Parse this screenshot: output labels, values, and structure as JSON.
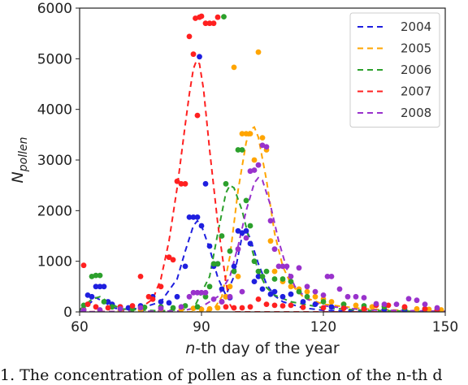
{
  "caption": "1. The concentration of pollen as a function of the n-th d",
  "chart_data": {
    "type": "scatter",
    "title": "",
    "xlabel_italic": "n",
    "xlabel_rest": "-th day of the year",
    "ylabel_main": "N",
    "ylabel_sub": "pollen",
    "xlim": [
      60,
      150
    ],
    "ylim": [
      0,
      6000
    ],
    "xticks": [
      60,
      90,
      120,
      150
    ],
    "yticks": [
      0,
      1000,
      2000,
      3000,
      4000,
      5000,
      6000
    ],
    "grid": false,
    "legend_position": "top-right",
    "series": [
      {
        "name": "2004",
        "color": "#1f1fdf",
        "points": [
          [
            61,
            50
          ],
          [
            62,
            330
          ],
          [
            63,
            300
          ],
          [
            64,
            500
          ],
          [
            65,
            500
          ],
          [
            66,
            500
          ],
          [
            67,
            200
          ],
          [
            68,
            150
          ],
          [
            70,
            100
          ],
          [
            72,
            80
          ],
          [
            75,
            120
          ],
          [
            78,
            300
          ],
          [
            80,
            200
          ],
          [
            82,
            180
          ],
          [
            84,
            300
          ],
          [
            86,
            900
          ],
          [
            87,
            1870
          ],
          [
            88,
            1870
          ],
          [
            89,
            1870
          ],
          [
            89.5,
            5040
          ],
          [
            90,
            1700
          ],
          [
            91,
            2530
          ],
          [
            92,
            1300
          ],
          [
            93,
            900
          ],
          [
            94,
            950
          ],
          [
            95,
            450
          ],
          [
            96,
            300
          ],
          [
            97,
            280
          ],
          [
            98,
            900
          ],
          [
            99,
            1600
          ],
          [
            100,
            1560
          ],
          [
            101,
            1600
          ],
          [
            102,
            1350
          ],
          [
            103,
            600
          ],
          [
            104,
            700
          ],
          [
            105,
            450
          ],
          [
            107,
            350
          ],
          [
            108,
            400
          ],
          [
            110,
            300
          ],
          [
            112,
            350
          ],
          [
            115,
            200
          ],
          [
            118,
            150
          ],
          [
            122,
            100
          ],
          [
            125,
            80
          ],
          [
            130,
            70
          ],
          [
            135,
            50
          ],
          [
            140,
            40
          ],
          [
            145,
            30
          ],
          [
            148,
            20
          ]
        ],
        "fit": [
          [
            60,
            30
          ],
          [
            62,
            130
          ],
          [
            64,
            280
          ],
          [
            66,
            200
          ],
          [
            68,
            90
          ],
          [
            70,
            50
          ],
          [
            75,
            70
          ],
          [
            80,
            200
          ],
          [
            84,
            650
          ],
          [
            86,
            1200
          ],
          [
            88,
            1700
          ],
          [
            89,
            1800
          ],
          [
            90,
            1700
          ],
          [
            92,
            1250
          ],
          [
            94,
            680
          ],
          [
            96,
            330
          ],
          [
            98,
            700
          ],
          [
            100,
            1500
          ],
          [
            101,
            1620
          ],
          [
            102,
            1450
          ],
          [
            104,
            950
          ],
          [
            106,
            550
          ],
          [
            108,
            320
          ],
          [
            110,
            200
          ],
          [
            115,
            80
          ],
          [
            120,
            30
          ],
          [
            130,
            10
          ],
          [
            150,
            0
          ]
        ]
      },
      {
        "name": "2005",
        "color": "#ffa500",
        "points": [
          [
            61,
            40
          ],
          [
            65,
            30
          ],
          [
            70,
            20
          ],
          [
            75,
            40
          ],
          [
            80,
            60
          ],
          [
            85,
            50
          ],
          [
            88,
            70
          ],
          [
            90,
            50
          ],
          [
            92,
            60
          ],
          [
            94,
            80
          ],
          [
            95,
            200
          ],
          [
            96,
            300
          ],
          [
            97,
            500
          ],
          [
            98,
            4830
          ],
          [
            99,
            700
          ],
          [
            100,
            3520
          ],
          [
            101,
            3520
          ],
          [
            102,
            3520
          ],
          [
            103,
            3000
          ],
          [
            104,
            5130
          ],
          [
            105,
            3440
          ],
          [
            106,
            3200
          ],
          [
            107,
            1400
          ],
          [
            108,
            800
          ],
          [
            110,
            600
          ],
          [
            112,
            500
          ],
          [
            114,
            450
          ],
          [
            116,
            400
          ],
          [
            118,
            300
          ],
          [
            120,
            250
          ],
          [
            122,
            200
          ],
          [
            125,
            150
          ],
          [
            128,
            130
          ],
          [
            132,
            100
          ],
          [
            135,
            120
          ],
          [
            140,
            90
          ],
          [
            143,
            60
          ],
          [
            146,
            50
          ],
          [
            149,
            40
          ]
        ],
        "fit": [
          [
            60,
            0
          ],
          [
            90,
            0
          ],
          [
            93,
            50
          ],
          [
            95,
            300
          ],
          [
            97,
            1100
          ],
          [
            99,
            2400
          ],
          [
            101,
            3350
          ],
          [
            102,
            3600
          ],
          [
            103,
            3650
          ],
          [
            104,
            3450
          ],
          [
            106,
            2600
          ],
          [
            108,
            1550
          ],
          [
            110,
            900
          ],
          [
            112,
            550
          ],
          [
            115,
            300
          ],
          [
            120,
            150
          ],
          [
            130,
            60
          ],
          [
            140,
            30
          ],
          [
            150,
            10
          ]
        ]
      },
      {
        "name": "2006",
        "color": "#2ca02c",
        "points": [
          [
            61,
            130
          ],
          [
            62,
            150
          ],
          [
            63,
            700
          ],
          [
            64,
            720
          ],
          [
            65,
            720
          ],
          [
            66,
            200
          ],
          [
            68,
            100
          ],
          [
            70,
            80
          ],
          [
            73,
            60
          ],
          [
            76,
            90
          ],
          [
            80,
            100
          ],
          [
            83,
            80
          ],
          [
            86,
            120
          ],
          [
            89,
            100
          ],
          [
            91,
            300
          ],
          [
            92,
            500
          ],
          [
            93,
            950
          ],
          [
            94,
            950
          ],
          [
            95,
            1500
          ],
          [
            95.5,
            5830
          ],
          [
            96,
            2530
          ],
          [
            97,
            1200
          ],
          [
            98,
            800
          ],
          [
            99,
            3200
          ],
          [
            100,
            3200
          ],
          [
            101,
            2200
          ],
          [
            102,
            1700
          ],
          [
            103,
            1000
          ],
          [
            104,
            800
          ],
          [
            105,
            700
          ],
          [
            106,
            800
          ],
          [
            108,
            650
          ],
          [
            110,
            650
          ],
          [
            112,
            600
          ],
          [
            114,
            400
          ],
          [
            116,
            300
          ],
          [
            120,
            200
          ],
          [
            125,
            150
          ],
          [
            130,
            120
          ],
          [
            135,
            100
          ],
          [
            140,
            80
          ],
          [
            145,
            60
          ],
          [
            148,
            40
          ]
        ],
        "fit": [
          [
            60,
            40
          ],
          [
            63,
            250
          ],
          [
            65,
            300
          ],
          [
            67,
            200
          ],
          [
            70,
            60
          ],
          [
            80,
            20
          ],
          [
            88,
            60
          ],
          [
            92,
            700
          ],
          [
            94,
            1550
          ],
          [
            96,
            2350
          ],
          [
            97,
            2500
          ],
          [
            98,
            2450
          ],
          [
            100,
            2000
          ],
          [
            102,
            1350
          ],
          [
            104,
            800
          ],
          [
            106,
            480
          ],
          [
            108,
            330
          ],
          [
            112,
            200
          ],
          [
            120,
            80
          ],
          [
            130,
            30
          ],
          [
            150,
            0
          ]
        ]
      },
      {
        "name": "2007",
        "color": "#ff2020",
        "points": [
          [
            61,
            920
          ],
          [
            62,
            150
          ],
          [
            64,
            100
          ],
          [
            67,
            80
          ],
          [
            70,
            100
          ],
          [
            73,
            120
          ],
          [
            75,
            700
          ],
          [
            77,
            300
          ],
          [
            78,
            250
          ],
          [
            80,
            500
          ],
          [
            82,
            1080
          ],
          [
            83,
            1030
          ],
          [
            84,
            2580
          ],
          [
            85,
            2530
          ],
          [
            86,
            2530
          ],
          [
            87,
            5440
          ],
          [
            88,
            5090
          ],
          [
            88.5,
            5800
          ],
          [
            89,
            3880
          ],
          [
            89.5,
            5820
          ],
          [
            90,
            5840
          ],
          [
            91,
            5700
          ],
          [
            92,
            5700
          ],
          [
            93,
            5700
          ],
          [
            94,
            5820
          ],
          [
            95,
            200
          ],
          [
            96,
            100
          ],
          [
            98,
            80
          ],
          [
            100,
            80
          ],
          [
            102,
            100
          ],
          [
            104,
            250
          ],
          [
            106,
            150
          ],
          [
            108,
            130
          ],
          [
            110,
            120
          ],
          [
            112,
            130
          ],
          [
            115,
            90
          ],
          [
            120,
            80
          ],
          [
            125,
            70
          ],
          [
            130,
            60
          ],
          [
            133,
            130
          ],
          [
            136,
            130
          ],
          [
            140,
            100
          ],
          [
            145,
            60
          ],
          [
            148,
            40
          ]
        ],
        "fit": [
          [
            60,
            0
          ],
          [
            70,
            10
          ],
          [
            75,
            80
          ],
          [
            78,
            250
          ],
          [
            80,
            650
          ],
          [
            82,
            1400
          ],
          [
            84,
            2450
          ],
          [
            86,
            3700
          ],
          [
            87,
            4300
          ],
          [
            88,
            4800
          ],
          [
            88.7,
            4950
          ],
          [
            89.5,
            4900
          ],
          [
            90.5,
            4400
          ],
          [
            92,
            3200
          ],
          [
            94,
            1750
          ],
          [
            96,
            600
          ],
          [
            97,
            150
          ],
          [
            98,
            0
          ],
          [
            150,
            0
          ]
        ]
      },
      {
        "name": "2008",
        "color": "#9932cc",
        "points": [
          [
            61,
            30
          ],
          [
            65,
            40
          ],
          [
            70,
            60
          ],
          [
            75,
            80
          ],
          [
            80,
            70
          ],
          [
            85,
            100
          ],
          [
            87,
            300
          ],
          [
            88,
            380
          ],
          [
            89,
            380
          ],
          [
            90,
            380
          ],
          [
            91,
            380
          ],
          [
            93,
            250
          ],
          [
            95,
            200
          ],
          [
            97,
            300
          ],
          [
            99,
            1240
          ],
          [
            100,
            400
          ],
          [
            101,
            1460
          ],
          [
            102,
            2780
          ],
          [
            103,
            2800
          ],
          [
            104,
            2900
          ],
          [
            105,
            3290
          ],
          [
            106,
            3260
          ],
          [
            107,
            1800
          ],
          [
            108,
            1240
          ],
          [
            109,
            900
          ],
          [
            110,
            900
          ],
          [
            111,
            900
          ],
          [
            112,
            700
          ],
          [
            114,
            870
          ],
          [
            116,
            500
          ],
          [
            118,
            400
          ],
          [
            120,
            330
          ],
          [
            121,
            700
          ],
          [
            122,
            700
          ],
          [
            124,
            450
          ],
          [
            126,
            300
          ],
          [
            128,
            300
          ],
          [
            130,
            280
          ],
          [
            133,
            160
          ],
          [
            135,
            150
          ],
          [
            138,
            150
          ],
          [
            141,
            260
          ],
          [
            143,
            230
          ],
          [
            145,
            150
          ],
          [
            148,
            80
          ]
        ],
        "fit": [
          [
            60,
            0
          ],
          [
            85,
            20
          ],
          [
            90,
            100
          ],
          [
            94,
            300
          ],
          [
            97,
            700
          ],
          [
            99,
            1300
          ],
          [
            101,
            2000
          ],
          [
            103,
            2550
          ],
          [
            104,
            2650
          ],
          [
            105,
            2600
          ],
          [
            107,
            2100
          ],
          [
            109,
            1400
          ],
          [
            111,
            850
          ],
          [
            113,
            500
          ],
          [
            116,
            250
          ],
          [
            120,
            120
          ],
          [
            130,
            40
          ],
          [
            150,
            10
          ]
        ]
      }
    ]
  }
}
